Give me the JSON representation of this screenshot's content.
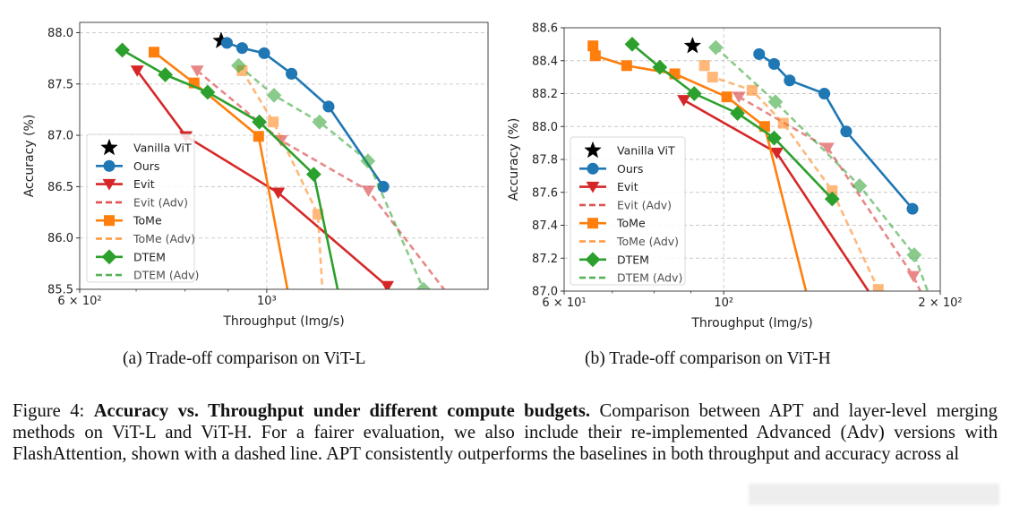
{
  "chart_data": [
    {
      "type": "line",
      "id": "vit-l",
      "title": "",
      "xlabel": "Throughput (Img/s)",
      "ylabel": "Accuracy (%)",
      "xscale": "log",
      "xlim": [
        600,
        1830
      ],
      "ylim": [
        85.5,
        88.1
      ],
      "xticks": [
        {
          "value": 600,
          "label": "6 × 10²"
        },
        {
          "value": 1000,
          "label": "10³"
        }
      ],
      "xminor": [
        700,
        800,
        900
      ],
      "yticks": [
        {
          "value": 85.5,
          "label": "85.5"
        },
        {
          "value": 86.0,
          "label": "86.0"
        },
        {
          "value": 86.5,
          "label": "86.5"
        },
        {
          "value": 87.0,
          "label": "87.0"
        },
        {
          "value": 87.5,
          "label": "87.5"
        },
        {
          "value": 88.0,
          "label": "88.0"
        }
      ],
      "grid": true,
      "legend_position": "lower-left",
      "series": [
        {
          "name": "Vanilla ViT",
          "marker": "star",
          "color": "#000000",
          "style": "none",
          "points": [
            [
              883,
              87.92
            ]
          ]
        },
        {
          "name": "Ours",
          "marker": "circle",
          "color": "#1f77b4",
          "style": "solid",
          "points": [
            [
              897,
              87.9
            ],
            [
              935,
              87.85
            ],
            [
              993,
              87.8
            ],
            [
              1070,
              87.6
            ],
            [
              1184,
              87.28
            ],
            [
              1375,
              86.5
            ]
          ]
        },
        {
          "name": "Evit",
          "marker": "triangle-down",
          "color": "#d62728",
          "style": "solid",
          "points": [
            [
              702,
              87.63
            ],
            [
              802,
              86.99
            ],
            [
              1032,
              86.44
            ],
            [
              1390,
              85.53
            ]
          ]
        },
        {
          "name": "Evit (Adv)",
          "marker": "triangle-down",
          "color": "#d62728",
          "style": "dashed",
          "points": [
            [
              827,
              87.63
            ],
            [
              1040,
              86.95
            ],
            [
              1320,
              86.46
            ],
            [
              1640,
              85.45
            ]
          ]
        },
        {
          "name": "ToMe",
          "marker": "square",
          "color": "#ff7f0e",
          "style": "solid",
          "points": [
            [
              735,
              87.81
            ],
            [
              820,
              87.51
            ],
            [
              978,
              86.99
            ],
            [
              1075,
              85.2
            ]
          ]
        },
        {
          "name": "ToMe (Adv)",
          "marker": "square",
          "color": "#ff7f0e",
          "style": "dashed",
          "points": [
            [
              935,
              87.63
            ],
            [
              1018,
              87.13
            ],
            [
              1150,
              86.23
            ],
            [
              1170,
              85.2
            ]
          ]
        },
        {
          "name": "DTEM",
          "marker": "diamond",
          "color": "#2ca02c",
          "style": "solid",
          "points": [
            [
              674,
              87.83
            ],
            [
              758,
              87.59
            ],
            [
              851,
              87.42
            ],
            [
              980,
              87.13
            ],
            [
              1137,
              86.62
            ],
            [
              1235,
              85.2
            ]
          ]
        },
        {
          "name": "DTEM (Adv)",
          "marker": "diamond",
          "color": "#2ca02c",
          "style": "dashed",
          "points": [
            [
              926,
              87.68
            ],
            [
              1020,
              87.39
            ],
            [
              1155,
              87.13
            ],
            [
              1318,
              86.75
            ],
            [
              1534,
              85.5
            ]
          ]
        }
      ]
    },
    {
      "type": "line",
      "id": "vit-h",
      "title": "",
      "xlabel": "Throughput (Img/s)",
      "ylabel": "Accuracy (%)",
      "xscale": "log",
      "xlim": [
        60,
        200
      ],
      "ylim": [
        87.0,
        88.6
      ],
      "xticks": [
        {
          "value": 60,
          "label": "6 × 10¹"
        },
        {
          "value": 100,
          "label": "10²"
        },
        {
          "value": 200,
          "label": "2 × 10²"
        }
      ],
      "xminor": [
        70,
        80,
        90
      ],
      "yticks": [
        {
          "value": 87.0,
          "label": "87.0"
        },
        {
          "value": 87.2,
          "label": "87.2"
        },
        {
          "value": 87.4,
          "label": "87.4"
        },
        {
          "value": 87.6,
          "label": "87.6"
        },
        {
          "value": 87.8,
          "label": "87.8"
        },
        {
          "value": 88.0,
          "label": "88.0"
        },
        {
          "value": 88.2,
          "label": "88.2"
        },
        {
          "value": 88.4,
          "label": "88.4"
        },
        {
          "value": 88.6,
          "label": "88.6"
        }
      ],
      "grid": true,
      "legend_position": "lower-left",
      "series": [
        {
          "name": "Vanilla ViT",
          "marker": "star",
          "color": "#000000",
          "style": "none",
          "points": [
            [
              90.5,
              88.49
            ]
          ]
        },
        {
          "name": "Ours",
          "marker": "circle",
          "color": "#1f77b4",
          "style": "solid",
          "points": [
            [
              112,
              88.44
            ],
            [
              117.5,
              88.38
            ],
            [
              123.5,
              88.28
            ],
            [
              138,
              88.2
            ],
            [
              148,
              87.97
            ],
            [
              183,
              87.5
            ]
          ]
        },
        {
          "name": "Evit",
          "marker": "triangle-down",
          "color": "#d62728",
          "style": "solid",
          "points": [
            [
              88,
              88.16
            ],
            [
              118.5,
              87.84
            ],
            [
              160,
              86.98
            ]
          ]
        },
        {
          "name": "Evit (Adv)",
          "marker": "triangle-down",
          "color": "#d62728",
          "style": "dashed",
          "points": [
            [
              105,
              88.18
            ],
            [
              139.5,
              87.87
            ],
            [
              183.5,
              87.09
            ],
            [
              190,
              86.95
            ]
          ]
        },
        {
          "name": "ToMe",
          "marker": "square",
          "color": "#ff7f0e",
          "style": "solid",
          "points": [
            [
              65.8,
              88.49
            ],
            [
              66.3,
              88.43
            ],
            [
              73.3,
              88.37
            ],
            [
              85.5,
              88.32
            ],
            [
              101,
              88.18
            ],
            [
              114,
              88.0
            ],
            [
              131,
              86.95
            ]
          ]
        },
        {
          "name": "ToMe (Adv)",
          "marker": "square",
          "color": "#ff7f0e",
          "style": "dashed",
          "points": [
            [
              94,
              88.37
            ],
            [
              96.5,
              88.3
            ],
            [
              109.5,
              88.22
            ],
            [
              121,
              88.02
            ],
            [
              141.5,
              87.61
            ],
            [
              164,
              87.01
            ]
          ]
        },
        {
          "name": "DTEM",
          "marker": "diamond",
          "color": "#2ca02c",
          "style": "solid",
          "points": [
            [
              74.6,
              88.5
            ],
            [
              81.5,
              88.36
            ],
            [
              91,
              88.2
            ],
            [
              104.5,
              88.08
            ],
            [
              117.5,
              87.93
            ],
            [
              141.5,
              87.56
            ]
          ]
        },
        {
          "name": "DTEM (Adv)",
          "marker": "diamond",
          "color": "#2ca02c",
          "style": "dashed",
          "points": [
            [
              97.5,
              88.48
            ],
            [
              118,
              88.15
            ],
            [
              154.5,
              87.64
            ],
            [
              184,
              87.22
            ],
            [
              194,
              86.95
            ]
          ]
        }
      ]
    }
  ],
  "subcaptions": {
    "a": "(a) Trade-off comparison on ViT-L",
    "b": "(b) Trade-off comparison on ViT-H"
  },
  "caption": {
    "label": "Figure 4:",
    "bold": "Accuracy vs.  Throughput under different compute budgets.",
    "text": "Comparison between APT and layer-level merging methods on ViT-L and ViT-H. For a fairer evaluation, we also include their re-implemented Advanced (Adv) versions with FlashAttention, shown with a dashed line. APT consistently outperforms the baselines in both throughput and accuracy across al"
  }
}
